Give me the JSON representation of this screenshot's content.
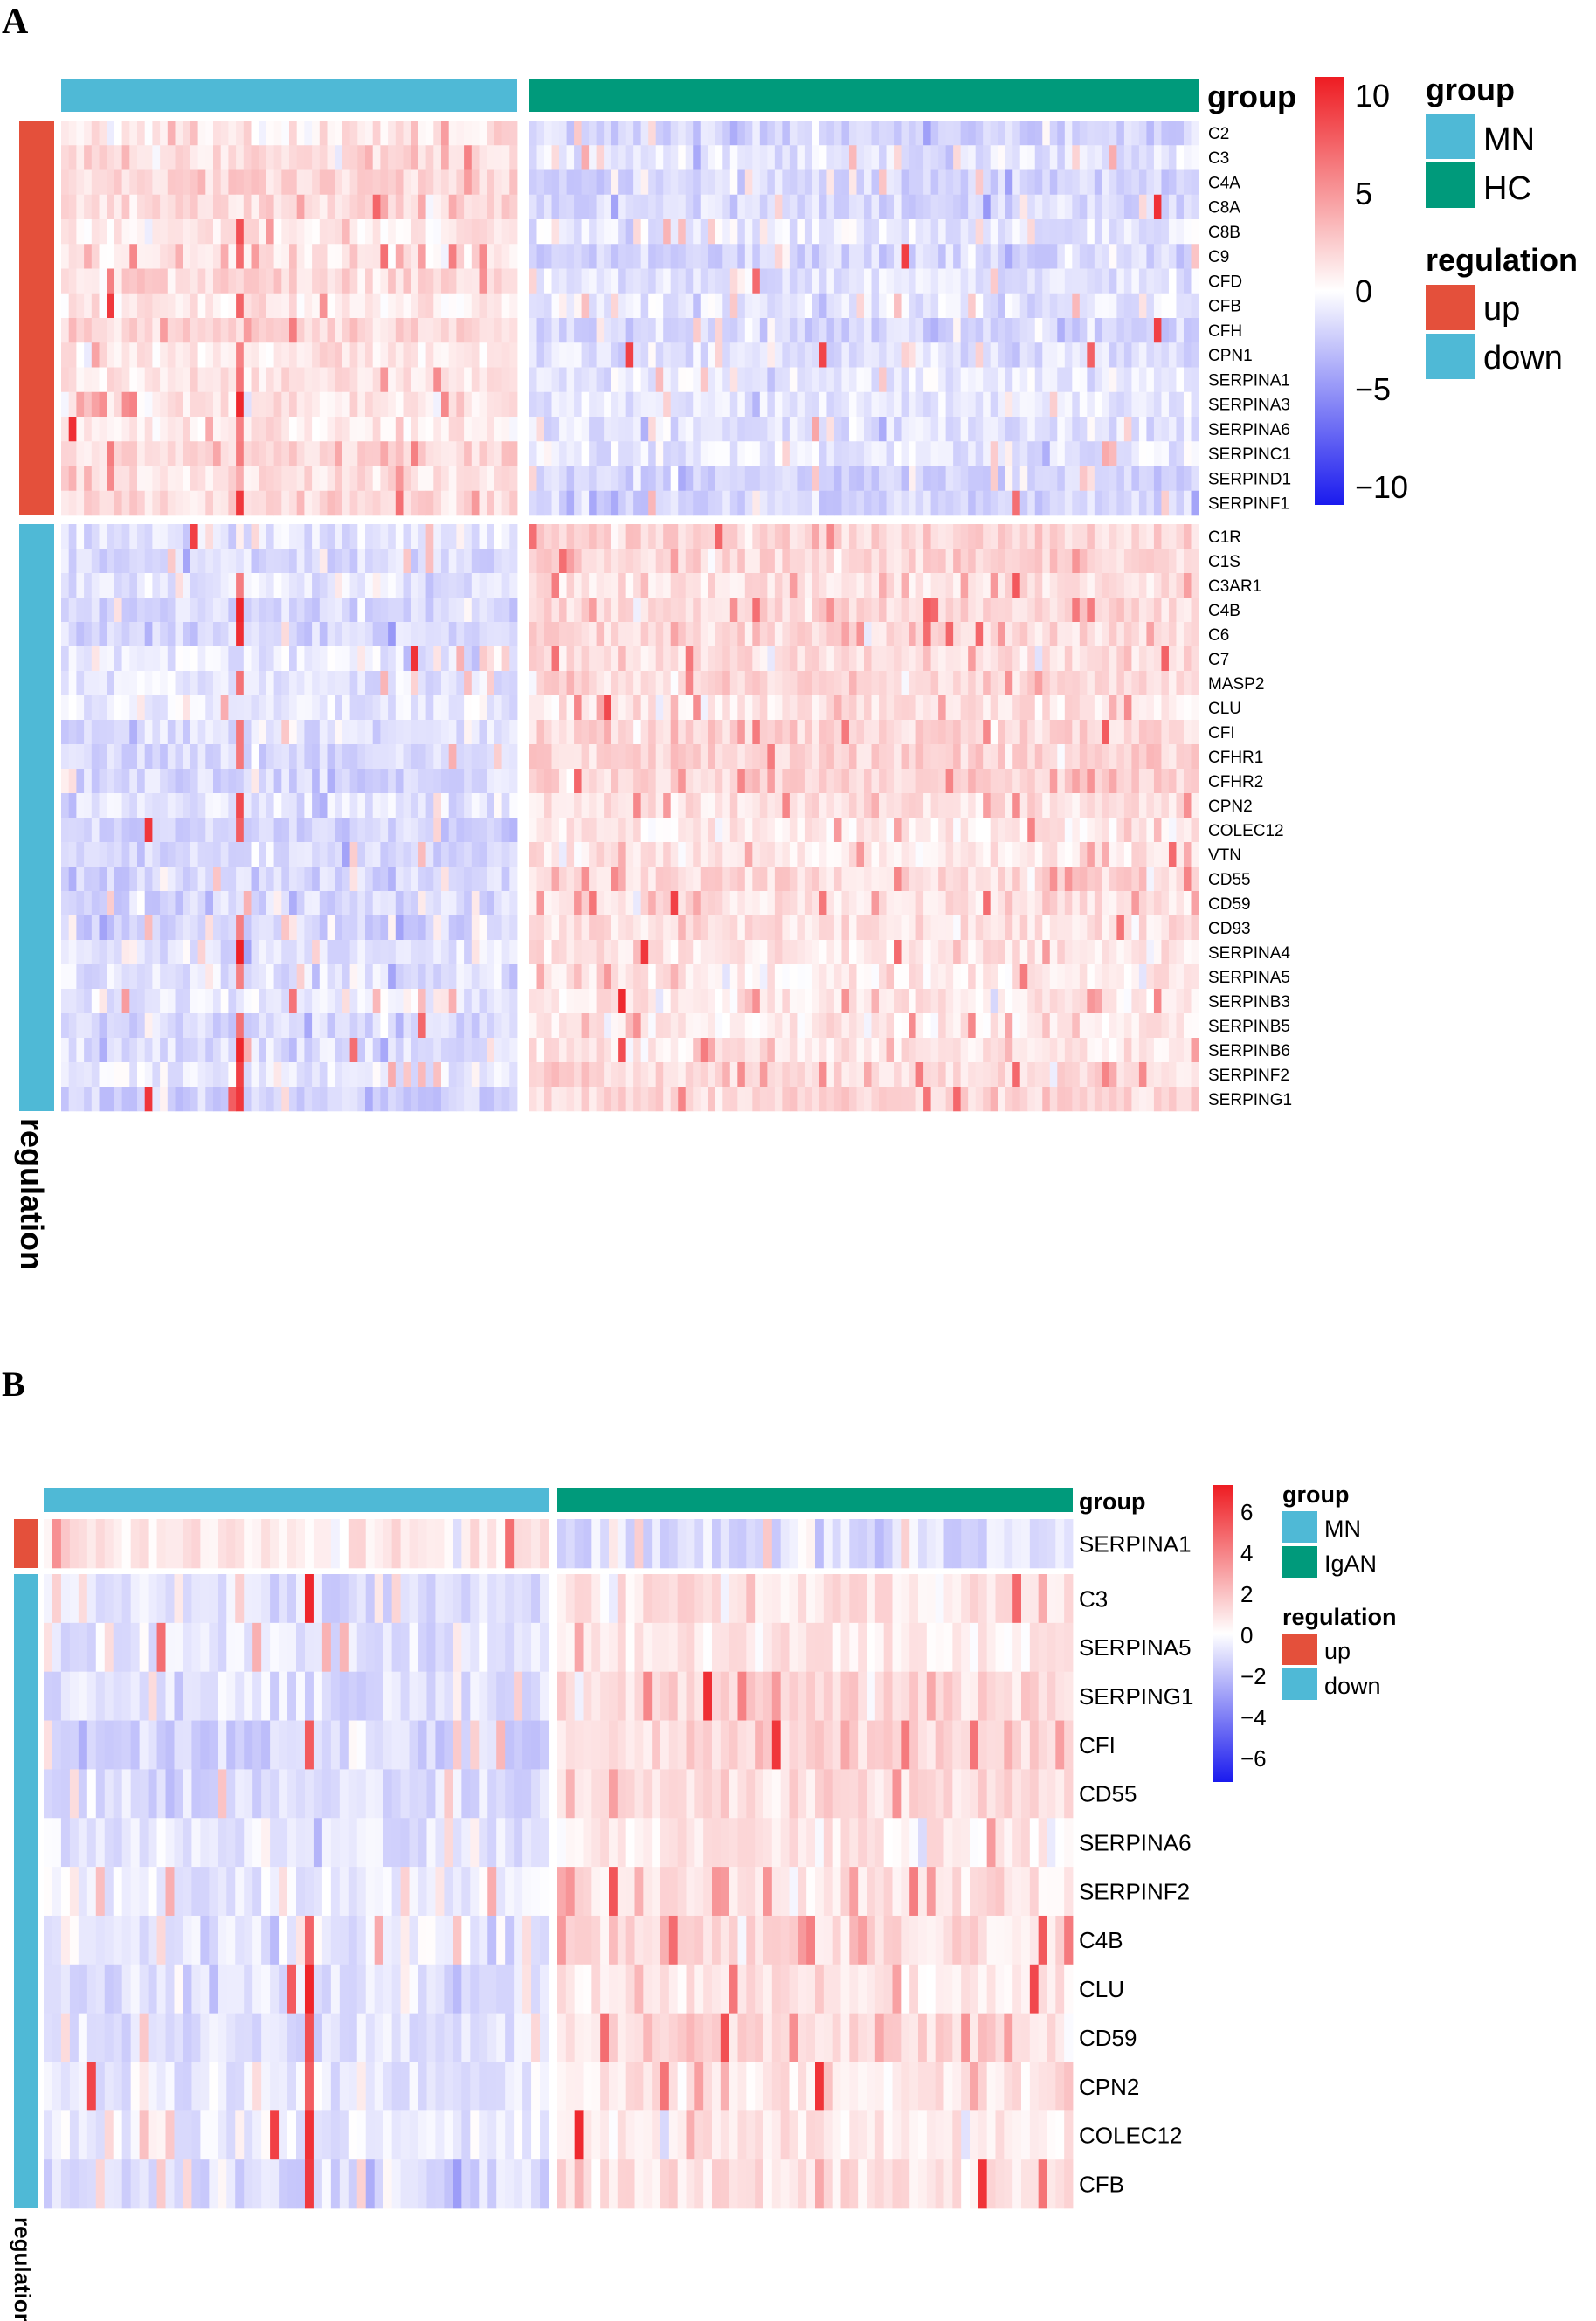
{
  "colors": {
    "mn": "#4fb9d6",
    "hc": "#009a7b",
    "up": "#e4503b",
    "down": "#4fb9d6",
    "high": "#ee1c22",
    "low": "#1a1aee",
    "mid": "#ffffff"
  },
  "chart_data": [
    {
      "type": "heatmap",
      "panel": "A",
      "annotation_title": "group",
      "row_annotation_title": "regulation",
      "columns": [
        {
          "group": "MN",
          "count": 60
        },
        {
          "group": "HC",
          "count": 90
        }
      ],
      "row_blocks": [
        {
          "regulation": "up",
          "genes": [
            "C2",
            "C3",
            "C4A",
            "C8A",
            "C8B",
            "C9",
            "CFD",
            "CFB",
            "CFH",
            "CPN1",
            "SERPINA1",
            "SERPINA3",
            "SERPINA6",
            "SERPINC1",
            "SERPIND1",
            "SERPINF1"
          ]
        },
        {
          "regulation": "down",
          "genes": [
            "C1R",
            "C1S",
            "C3AR1",
            "C4B",
            "C6",
            "C7",
            "MASP2",
            "CLU",
            "CFI",
            "CFHR1",
            "CFHR2",
            "CPN2",
            "COLEC12",
            "VTN",
            "CD55",
            "CD59",
            "CD93",
            "SERPINA4",
            "SERPINA5",
            "SERPINB3",
            "SERPINB5",
            "SERPINB6",
            "SERPINF2",
            "SERPING1"
          ]
        }
      ],
      "color_scale": {
        "min": -10,
        "max": 10,
        "ticks": [
          "10",
          "5",
          "0",
          "−5",
          "−10"
        ]
      },
      "legend": {
        "group_title": "group",
        "group_entries": [
          "MN",
          "HC"
        ],
        "regulation_title": "regulation",
        "regulation_entries": [
          "up",
          "down"
        ]
      },
      "seed": 17
    },
    {
      "type": "heatmap",
      "panel": "B",
      "annotation_title": "group",
      "row_annotation_title": "regulation",
      "columns": [
        {
          "group": "MN",
          "count": 58
        },
        {
          "group": "IgAN",
          "count": 60
        }
      ],
      "row_blocks": [
        {
          "regulation": "up",
          "genes": [
            "SERPINA1"
          ]
        },
        {
          "regulation": "down",
          "genes": [
            "C3",
            "SERPINA5",
            "SERPING1",
            "CFI",
            "CD55",
            "SERPINA6",
            "SERPINF2",
            "C4B",
            "CLU",
            "CD59",
            "CPN2",
            "COLEC12",
            "CFB"
          ]
        }
      ],
      "color_scale": {
        "min": -6,
        "max": 6,
        "ticks": [
          "6",
          "4",
          "2",
          "0",
          "−2",
          "−4",
          "−6"
        ]
      },
      "legend": {
        "group_title": "group",
        "group_entries": [
          "MN",
          "IgAN"
        ],
        "regulation_title": "regulation",
        "regulation_entries": [
          "up",
          "down"
        ]
      },
      "seed": 91
    }
  ],
  "panel_labels": [
    "A",
    "B"
  ]
}
